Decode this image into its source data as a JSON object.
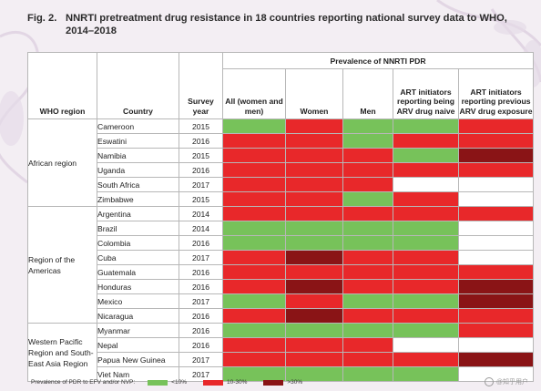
{
  "figure": {
    "label": "Fig. 2.",
    "title_line1": "NNRTI pretreatment drug resistance in 18 countries reporting national survey data to WHO,",
    "title_line2": "2014–2018"
  },
  "table": {
    "headers": {
      "region": "WHO region",
      "country": "Country",
      "year": "Survey year",
      "pdr_group": "Prevalence of NNRTI PDR",
      "all": "All (women and men)",
      "women": "Women",
      "men": "Men",
      "naive": "ART initiators reporting being ARV drug naive",
      "prev": "ART initiators reporting previous ARV drug exposure"
    },
    "regions": [
      {
        "name": "African region",
        "rows": [
          {
            "country": "Cameroon",
            "year": "2015",
            "cells": [
              "low",
              "mid",
              "low",
              "low",
              "mid"
            ]
          },
          {
            "country": "Eswatini",
            "year": "2016",
            "cells": [
              "mid",
              "mid",
              "low",
              "mid",
              "mid"
            ]
          },
          {
            "country": "Namibia",
            "year": "2015",
            "cells": [
              "mid",
              "mid",
              "mid",
              "low",
              "high"
            ]
          },
          {
            "country": "Uganda",
            "year": "2016",
            "cells": [
              "mid",
              "mid",
              "mid",
              "mid",
              "mid"
            ]
          },
          {
            "country": "South Africa",
            "year": "2017",
            "cells": [
              "mid",
              "mid",
              "mid",
              "none",
              "none"
            ]
          },
          {
            "country": "Zimbabwe",
            "year": "2015",
            "cells": [
              "mid",
              "mid",
              "low",
              "mid",
              "none"
            ]
          }
        ]
      },
      {
        "name": "Region of the Americas",
        "rows": [
          {
            "country": "Argentina",
            "year": "2014",
            "cells": [
              "mid",
              "mid",
              "mid",
              "mid",
              "mid"
            ]
          },
          {
            "country": "Brazil",
            "year": "2014",
            "cells": [
              "low",
              "low",
              "low",
              "low",
              "none"
            ]
          },
          {
            "country": "Colombia",
            "year": "2016",
            "cells": [
              "low",
              "low",
              "low",
              "low",
              "none"
            ]
          },
          {
            "country": "Cuba",
            "year": "2017",
            "cells": [
              "mid",
              "high",
              "mid",
              "mid",
              "none"
            ]
          },
          {
            "country": "Guatemala",
            "year": "2016",
            "cells": [
              "mid",
              "mid",
              "mid",
              "mid",
              "mid"
            ]
          },
          {
            "country": "Honduras",
            "year": "2016",
            "cells": [
              "mid",
              "high",
              "mid",
              "mid",
              "high"
            ]
          },
          {
            "country": "Mexico",
            "year": "2017",
            "cells": [
              "low",
              "mid",
              "low",
              "low",
              "high"
            ]
          },
          {
            "country": "Nicaragua",
            "year": "2016",
            "cells": [
              "mid",
              "high",
              "mid",
              "mid",
              "mid"
            ]
          }
        ]
      },
      {
        "name": "Western Pacific Region and South-East Asia Region",
        "rows": [
          {
            "country": "Myanmar",
            "year": "2016",
            "cells": [
              "low",
              "low",
              "low",
              "low",
              "mid"
            ]
          },
          {
            "country": "Nepal",
            "year": "2016",
            "cells": [
              "mid",
              "mid",
              "mid",
              "none",
              "none"
            ]
          },
          {
            "country": "Papua New Guinea",
            "year": "2017",
            "cells": [
              "mid",
              "mid",
              "mid",
              "mid",
              "high"
            ]
          },
          {
            "country": "Viet Nam",
            "year": "2017",
            "cells": [
              "low",
              "low",
              "low",
              "low",
              "none"
            ]
          }
        ]
      }
    ]
  },
  "legend": {
    "title": "Prevalence of PDR to EFV and/or NVP:",
    "items": [
      {
        "key": "low",
        "label": "<10%",
        "color": "#77c25a"
      },
      {
        "key": "mid",
        "label": "10-30%",
        "color": "#e8282a"
      },
      {
        "key": "high",
        "label": ">30%",
        "color": "#8a1416"
      }
    ]
  },
  "colors": {
    "low": "#77c25a",
    "mid": "#e8282a",
    "high": "#8a1416",
    "none": "#ffffff",
    "background": "#f3eef3"
  },
  "watermark": {
    "text": "@知乎用户",
    "icon": "weibo-icon"
  }
}
